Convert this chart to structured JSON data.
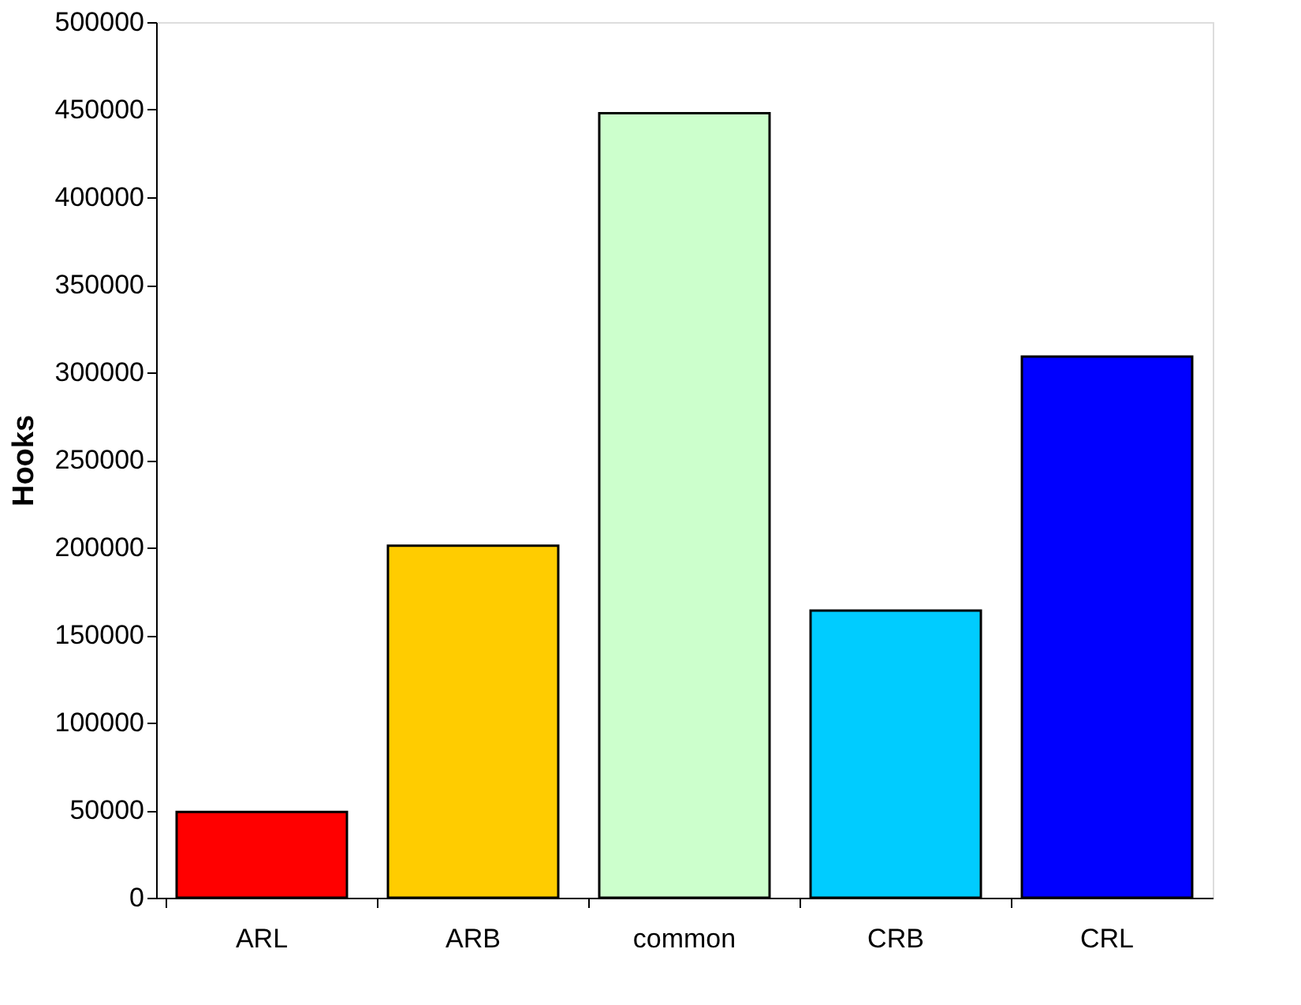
{
  "chart_data": {
    "type": "bar",
    "ylabel": "Hooks",
    "categories": [
      "ARL",
      "ARB",
      "common",
      "CRB",
      "CRL"
    ],
    "values": [
      49000,
      201000,
      448000,
      164000,
      309000
    ],
    "colors": [
      "#ff0000",
      "#ffcc00",
      "#ccffcc",
      "#00ccff",
      "#0000ff"
    ],
    "ylim": [
      0,
      500000
    ],
    "yticks": [
      0,
      50000,
      100000,
      150000,
      200000,
      250000,
      300000,
      350000,
      400000,
      450000,
      500000
    ],
    "grid": false
  }
}
